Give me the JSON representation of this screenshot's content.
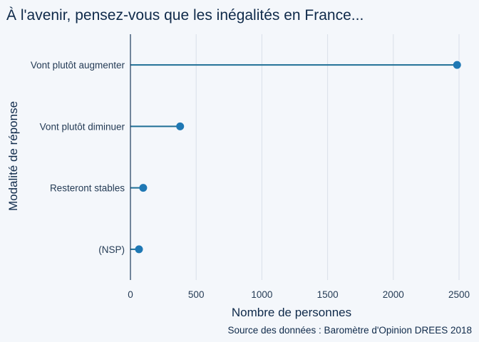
{
  "chart_data": {
    "type": "lollipop",
    "title": "À l'avenir, pensez-vous que les inégalités en France...",
    "xlabel": "Nombre de personnes",
    "ylabel": "Modalité de réponse",
    "caption": "Source des données : Baromètre d'Opinion DREES 2018",
    "categories": [
      "Vont plutôt augmenter",
      "Vont plutôt diminuer",
      "Resteront stables",
      "(NSP)"
    ],
    "values": [
      2485,
      378,
      97,
      65
    ],
    "xlim": [
      0,
      2500
    ],
    "xticks": [
      0,
      500,
      1000,
      1500,
      2000,
      2500
    ],
    "grid": true,
    "colors": {
      "background": "#f4f7fb",
      "gridline": "#d9dfe8",
      "axis": "#1b3a5c",
      "stem": "#1f6f96",
      "point": "#1f78b4",
      "text": "#0f2a4a"
    }
  }
}
